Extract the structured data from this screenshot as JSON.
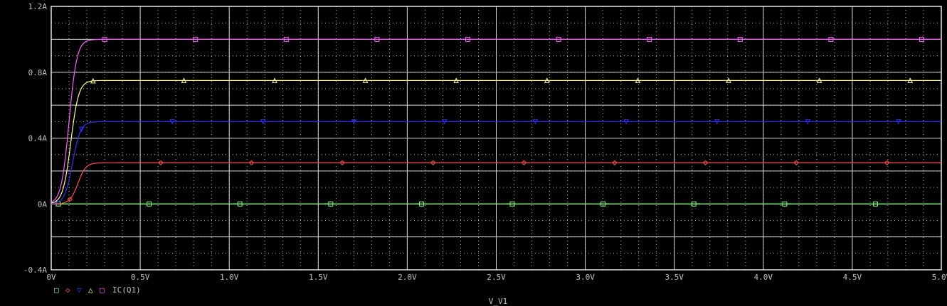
{
  "chart_data": {
    "type": "line",
    "xlabel": "V_V1",
    "ylabel": "",
    "xlim": [
      0,
      5
    ],
    "ylim": [
      -0.4,
      1.2
    ],
    "grid": true,
    "x_ticks": [
      "0V",
      "0.5V",
      "1.0V",
      "1.5V",
      "2.0V",
      "2.5V",
      "3.0V",
      "3.5V",
      "4.0V",
      "4.5V",
      "5.0V"
    ],
    "x_tick_values": [
      0,
      0.5,
      1.0,
      1.5,
      2.0,
      2.5,
      3.0,
      3.5,
      4.0,
      4.5,
      5.0
    ],
    "y_ticks": [
      "1.2A",
      "0.8A",
      "0.4A",
      "0A",
      "-0.4A"
    ],
    "y_tick_values": [
      1.2,
      0.8,
      0.4,
      0.0,
      -0.4
    ],
    "legend_placement": "bottom-left",
    "series": [
      {
        "name": "",
        "color": "#80ff80",
        "marker": "square",
        "rise_x": 0.12,
        "plateau": 0.0,
        "legend_symbol": "□"
      },
      {
        "name": "",
        "color": "#ff5050",
        "marker": "diamond",
        "rise_x": 0.15,
        "plateau": 0.25,
        "legend_symbol": "◇"
      },
      {
        "name": "",
        "color": "#3030ff",
        "marker": "triangle-down",
        "rise_x": 0.12,
        "plateau": 0.5,
        "legend_symbol": "▽"
      },
      {
        "name": "",
        "color": "#ffff90",
        "marker": "triangle-up",
        "rise_x": 0.11,
        "plateau": 0.75,
        "legend_symbol": "△"
      },
      {
        "name": "IC(Q1)",
        "color": "#ff60ff",
        "marker": "square",
        "rise_x": 0.1,
        "plateau": 1.0,
        "legend_symbol": "□"
      }
    ]
  }
}
